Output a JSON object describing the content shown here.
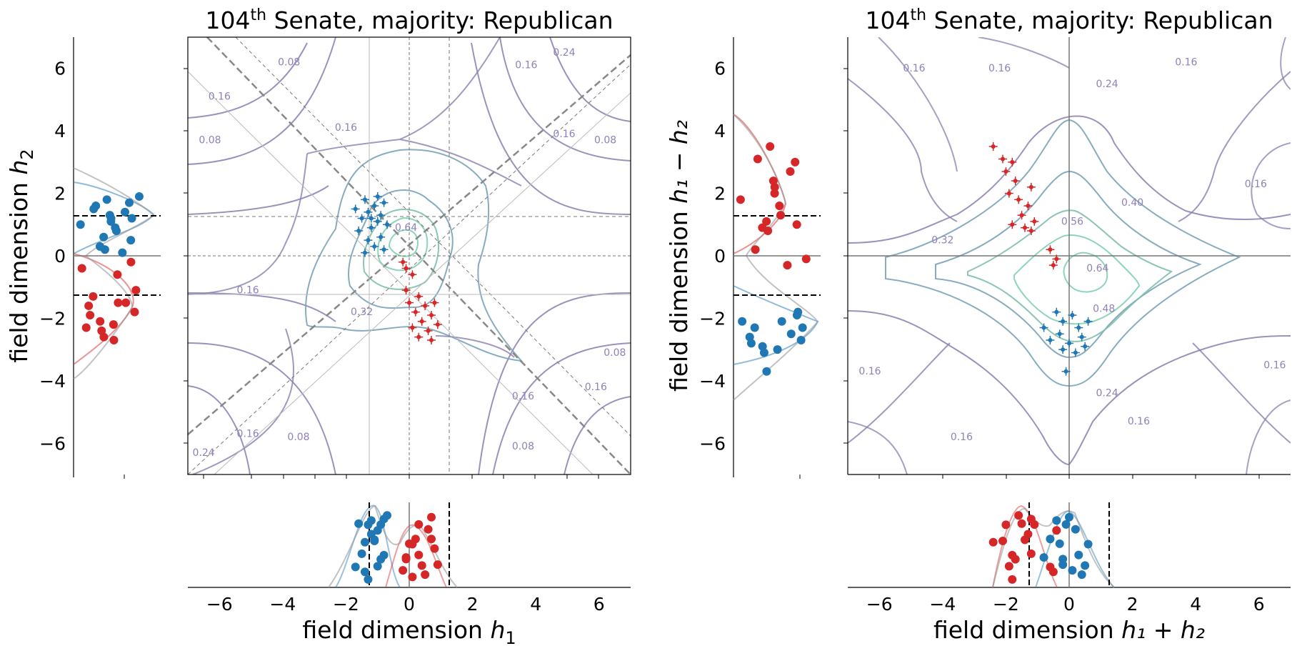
{
  "chart_data": [
    {
      "type": "contour",
      "panel": "left-main",
      "title_pre": "104",
      "title_sup": "th",
      "title_post": " Senate, majority: Republican",
      "xlabel": "",
      "ylabel": "",
      "xlim": [
        -7,
        7
      ],
      "ylim": [
        -7,
        7
      ],
      "contour_labels": [
        {
          "text": "0.08",
          "x": -3.8,
          "y": 6.1
        },
        {
          "text": "0.16",
          "x": -6.0,
          "y": 5.0
        },
        {
          "text": "0.08",
          "x": -6.3,
          "y": 3.6
        },
        {
          "text": "0.16",
          "x": -2.0,
          "y": 4.0
        },
        {
          "text": "0.16",
          "x": 3.7,
          "y": 6.0
        },
        {
          "text": "0.24",
          "x": 4.9,
          "y": 6.4
        },
        {
          "text": "0.16",
          "x": 4.9,
          "y": 3.8
        },
        {
          "text": "0.08",
          "x": 6.2,
          "y": 3.6
        },
        {
          "text": "0.64",
          "x": -0.1,
          "y": 0.8
        },
        {
          "text": "0.16",
          "x": -5.1,
          "y": -1.2
        },
        {
          "text": "0.32",
          "x": -1.5,
          "y": -1.9
        },
        {
          "text": "0.08",
          "x": 6.5,
          "y": -3.2
        },
        {
          "text": "0.16",
          "x": 5.9,
          "y": -4.3
        },
        {
          "text": "0.16",
          "x": 3.6,
          "y": -4.6
        },
        {
          "text": "0.16",
          "x": -5.1,
          "y": -5.8
        },
        {
          "text": "0.08",
          "x": -3.5,
          "y": -5.9
        },
        {
          "text": "0.08",
          "x": 3.6,
          "y": -6.2
        },
        {
          "text": "0.24",
          "x": -6.5,
          "y": -6.4
        }
      ],
      "points": [
        {
          "party": "Democrat",
          "color": "#1f77b4",
          "h1": -1.4,
          "h2": 1.8
        },
        {
          "party": "Democrat",
          "color": "#1f77b4",
          "h1": -1.1,
          "h2": 1.6
        },
        {
          "party": "Democrat",
          "color": "#1f77b4",
          "h1": -0.8,
          "h2": 1.7
        },
        {
          "party": "Democrat",
          "color": "#1f77b4",
          "h1": -1.3,
          "h2": 1.4
        },
        {
          "party": "Democrat",
          "color": "#1f77b4",
          "h1": -0.9,
          "h2": 1.3
        },
        {
          "party": "Democrat",
          "color": "#1f77b4",
          "h1": -1.5,
          "h2": 1.2
        },
        {
          "party": "Democrat",
          "color": "#1f77b4",
          "h1": -1.0,
          "h2": 1.1
        },
        {
          "party": "Democrat",
          "color": "#1f77b4",
          "h1": -0.7,
          "h2": 1.0
        },
        {
          "party": "Democrat",
          "color": "#1f77b4",
          "h1": -1.2,
          "h2": 0.9
        },
        {
          "party": "Democrat",
          "color": "#1f77b4",
          "h1": -1.6,
          "h2": 0.8
        },
        {
          "party": "Democrat",
          "color": "#1f77b4",
          "h1": -0.9,
          "h2": 0.6
        },
        {
          "party": "Democrat",
          "color": "#1f77b4",
          "h1": -1.3,
          "h2": 0.5
        },
        {
          "party": "Democrat",
          "color": "#1f77b4",
          "h1": -1.1,
          "h2": 0.3
        },
        {
          "party": "Democrat",
          "color": "#1f77b4",
          "h1": -0.8,
          "h2": 0.2
        },
        {
          "party": "Democrat",
          "color": "#1f77b4",
          "h1": -1.7,
          "h2": 1.5
        },
        {
          "party": "Democrat",
          "color": "#1f77b4",
          "h1": -1.0,
          "h2": 1.9
        },
        {
          "party": "Democrat",
          "color": "#1f77b4",
          "h1": -1.4,
          "h2": 0.1
        },
        {
          "party": "Democrat",
          "color": "#1f77b4",
          "h1": -1.2,
          "h2": 1.2
        },
        {
          "party": "Republican",
          "color": "#d62728",
          "h1": -0.2,
          "h2": -0.2
        },
        {
          "party": "Republican",
          "color": "#d62728",
          "h1": -0.1,
          "h2": -0.4
        },
        {
          "party": "Republican",
          "color": "#d62728",
          "h1": 0.1,
          "h2": -0.6
        },
        {
          "party": "Republican",
          "color": "#d62728",
          "h1": -0.1,
          "h2": -1.1
        },
        {
          "party": "Republican",
          "color": "#d62728",
          "h1": 0.3,
          "h2": -1.3
        },
        {
          "party": "Republican",
          "color": "#d62728",
          "h1": 0.0,
          "h2": -1.5
        },
        {
          "party": "Republican",
          "color": "#d62728",
          "h1": 0.5,
          "h2": -1.6
        },
        {
          "party": "Republican",
          "color": "#d62728",
          "h1": 0.2,
          "h2": -1.8
        },
        {
          "party": "Republican",
          "color": "#d62728",
          "h1": 0.7,
          "h2": -1.9
        },
        {
          "party": "Republican",
          "color": "#d62728",
          "h1": 0.4,
          "h2": -2.1
        },
        {
          "party": "Republican",
          "color": "#d62728",
          "h1": 0.9,
          "h2": -2.2
        },
        {
          "party": "Republican",
          "color": "#d62728",
          "h1": 0.6,
          "h2": -2.4
        },
        {
          "party": "Republican",
          "color": "#d62728",
          "h1": 0.3,
          "h2": -2.6
        },
        {
          "party": "Republican",
          "color": "#d62728",
          "h1": 0.7,
          "h2": -2.7
        },
        {
          "party": "Republican",
          "color": "#d62728",
          "h1": 0.1,
          "h2": -2.3
        },
        {
          "party": "Republican",
          "color": "#d62728",
          "h1": 0.8,
          "h2": -1.5
        }
      ]
    },
    {
      "type": "scatter",
      "panel": "left-marginal-y",
      "ylabel_pre": "field dimension ",
      "ylabel_var": "h",
      "ylabel_sub": "2",
      "ylim": [
        -7,
        7
      ],
      "yticks": [
        "6",
        "4",
        "2",
        "0",
        "−2",
        "−4",
        "−6"
      ],
      "threshold_lines": [
        1.27,
        -1.27
      ]
    },
    {
      "type": "scatter",
      "panel": "left-marginal-x",
      "xlabel_pre": "field dimension ",
      "xlabel_var": "h",
      "xlabel_sub": "1",
      "xlim": [
        -7,
        7
      ],
      "xticks": [
        "−6",
        "−4",
        "−2",
        "0",
        "2",
        "4",
        "6"
      ],
      "threshold_lines": [
        -1.27,
        1.27
      ]
    },
    {
      "type": "contour",
      "panel": "right-main",
      "title_pre": "104",
      "title_sup": "th",
      "title_post": " Senate, majority: Republican",
      "xlim": [
        -7,
        7
      ],
      "ylim": [
        -7,
        7
      ],
      "contour_labels": [
        {
          "text": "0.16",
          "x": -4.9,
          "y": 5.9
        },
        {
          "text": "0.16",
          "x": -2.2,
          "y": 5.9
        },
        {
          "text": "0.24",
          "x": 1.2,
          "y": 5.4
        },
        {
          "text": "0.16",
          "x": 3.7,
          "y": 6.1
        },
        {
          "text": "0.16",
          "x": 5.9,
          "y": 2.2
        },
        {
          "text": "0.40",
          "x": 2.0,
          "y": 1.6
        },
        {
          "text": "0.56",
          "x": 0.1,
          "y": 1.0
        },
        {
          "text": "0.32",
          "x": -4.0,
          "y": 0.4
        },
        {
          "text": "0.64",
          "x": 0.9,
          "y": -0.5
        },
        {
          "text": "0.48",
          "x": 1.1,
          "y": -1.8
        },
        {
          "text": "0.16",
          "x": -6.3,
          "y": -3.8
        },
        {
          "text": "0.24",
          "x": 1.2,
          "y": -4.5
        },
        {
          "text": "0.16",
          "x": 2.2,
          "y": -5.4
        },
        {
          "text": "0.16",
          "x": -3.4,
          "y": -5.9
        },
        {
          "text": "0.16",
          "x": 6.5,
          "y": -3.6
        }
      ],
      "points": [
        {
          "party": "Republican",
          "color": "#d62728",
          "h1_plus_h2": -2.4,
          "h1_minus_h2": 3.5
        },
        {
          "party": "Republican",
          "color": "#d62728",
          "h1_plus_h2": -2.1,
          "h1_minus_h2": 3.1
        },
        {
          "party": "Republican",
          "color": "#d62728",
          "h1_plus_h2": -1.8,
          "h1_minus_h2": 3.0
        },
        {
          "party": "Republican",
          "color": "#d62728",
          "h1_plus_h2": -2.0,
          "h1_minus_h2": 2.7
        },
        {
          "party": "Republican",
          "color": "#d62728",
          "h1_plus_h2": -1.7,
          "h1_minus_h2": 2.4
        },
        {
          "party": "Republican",
          "color": "#d62728",
          "h1_plus_h2": -1.2,
          "h1_minus_h2": 2.2
        },
        {
          "party": "Republican",
          "color": "#d62728",
          "h1_plus_h2": -1.9,
          "h1_minus_h2": 2.0
        },
        {
          "party": "Republican",
          "color": "#d62728",
          "h1_plus_h2": -1.6,
          "h1_minus_h2": 1.8
        },
        {
          "party": "Republican",
          "color": "#d62728",
          "h1_plus_h2": -1.3,
          "h1_minus_h2": 1.6
        },
        {
          "party": "Republican",
          "color": "#d62728",
          "h1_plus_h2": -1.5,
          "h1_minus_h2": 1.3
        },
        {
          "party": "Republican",
          "color": "#d62728",
          "h1_plus_h2": -1.1,
          "h1_minus_h2": 1.1
        },
        {
          "party": "Republican",
          "color": "#d62728",
          "h1_plus_h2": -1.8,
          "h1_minus_h2": 1.0
        },
        {
          "party": "Republican",
          "color": "#d62728",
          "h1_plus_h2": -1.4,
          "h1_minus_h2": 0.9
        },
        {
          "party": "Republican",
          "color": "#d62728",
          "h1_plus_h2": -1.2,
          "h1_minus_h2": 0.8
        },
        {
          "party": "Republican",
          "color": "#d62728",
          "h1_plus_h2": -0.6,
          "h1_minus_h2": 0.2
        },
        {
          "party": "Republican",
          "color": "#d62728",
          "h1_plus_h2": -0.4,
          "h1_minus_h2": -0.1
        },
        {
          "party": "Republican",
          "color": "#d62728",
          "h1_plus_h2": -0.5,
          "h1_minus_h2": -0.3
        },
        {
          "party": "Democrat",
          "color": "#1f77b4",
          "h1_plus_h2": -0.4,
          "h1_minus_h2": -1.8
        },
        {
          "party": "Democrat",
          "color": "#1f77b4",
          "h1_plus_h2": 0.1,
          "h1_minus_h2": -1.9
        },
        {
          "party": "Democrat",
          "color": "#1f77b4",
          "h1_plus_h2": -0.2,
          "h1_minus_h2": -2.1
        },
        {
          "party": "Democrat",
          "color": "#1f77b4",
          "h1_plus_h2": 0.6,
          "h1_minus_h2": -2.1
        },
        {
          "party": "Democrat",
          "color": "#1f77b4",
          "h1_plus_h2": -0.8,
          "h1_minus_h2": -2.3
        },
        {
          "party": "Democrat",
          "color": "#1f77b4",
          "h1_plus_h2": 0.3,
          "h1_minus_h2": -2.3
        },
        {
          "party": "Democrat",
          "color": "#1f77b4",
          "h1_plus_h2": -0.3,
          "h1_minus_h2": -2.5
        },
        {
          "party": "Democrat",
          "color": "#1f77b4",
          "h1_plus_h2": 0.4,
          "h1_minus_h2": -2.6
        },
        {
          "party": "Democrat",
          "color": "#1f77b4",
          "h1_plus_h2": -0.6,
          "h1_minus_h2": -2.7
        },
        {
          "party": "Democrat",
          "color": "#1f77b4",
          "h1_plus_h2": 0.0,
          "h1_minus_h2": -2.8
        },
        {
          "party": "Democrat",
          "color": "#1f77b4",
          "h1_plus_h2": 0.5,
          "h1_minus_h2": -2.9
        },
        {
          "party": "Democrat",
          "color": "#1f77b4",
          "h1_plus_h2": -0.2,
          "h1_minus_h2": -3.0
        },
        {
          "party": "Democrat",
          "color": "#1f77b4",
          "h1_plus_h2": 0.2,
          "h1_minus_h2": -3.1
        },
        {
          "party": "Democrat",
          "color": "#1f77b4",
          "h1_plus_h2": -0.1,
          "h1_minus_h2": -3.7
        }
      ]
    },
    {
      "type": "scatter",
      "panel": "right-marginal-y",
      "ylabel_pre": "field dimension ",
      "ylabel_expr": "h₁ − h₂",
      "ylim": [
        -7,
        7
      ],
      "yticks": [
        "6",
        "4",
        "2",
        "0",
        "−2",
        "−4",
        "−6"
      ],
      "threshold_lines": [
        1.27,
        -1.27
      ]
    },
    {
      "type": "scatter",
      "panel": "right-marginal-x",
      "xlabel_pre": "field dimension ",
      "xlabel_expr": "h₁ + h₂",
      "xlim": [
        -7,
        7
      ],
      "xticks": [
        "−6",
        "−4",
        "−2",
        "0",
        "2",
        "4",
        "6"
      ],
      "threshold_lines": [
        -1.27,
        1.27
      ]
    }
  ],
  "colors": {
    "democrat": "#1f77b4",
    "republican": "#d62728",
    "contour_outer": "#8a7fb0",
    "contour_mid": "#7aa3b8",
    "contour_inner": "#7fd0b0"
  }
}
